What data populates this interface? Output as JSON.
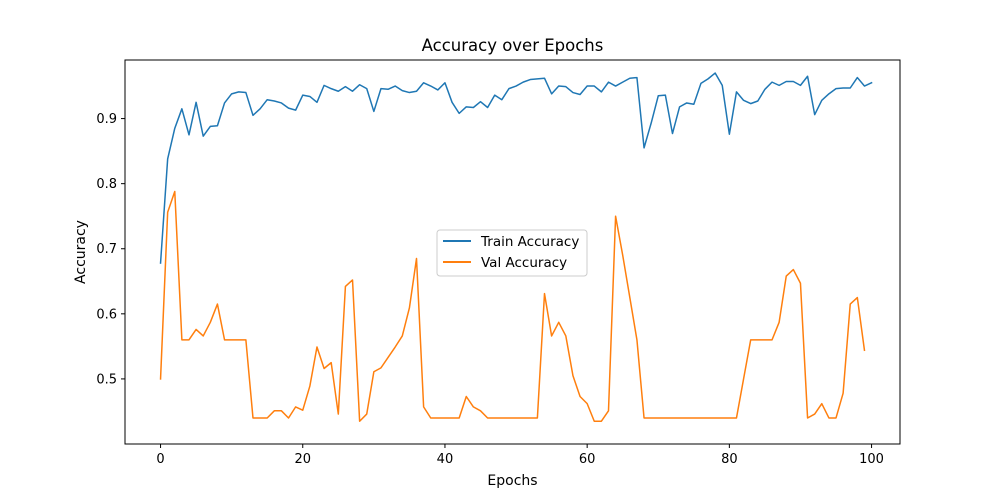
{
  "chart_data": {
    "type": "line",
    "title": "Accuracy over Epochs",
    "xlabel": "Epochs",
    "ylabel": "Accuracy",
    "xlim": [
      -5,
      104
    ],
    "ylim": [
      0.4,
      0.99
    ],
    "xticks": [
      0,
      20,
      40,
      60,
      80,
      100
    ],
    "yticks": [
      0.5,
      0.6,
      0.7,
      0.8,
      0.9
    ],
    "ytick_labels": [
      "0.5",
      "0.6",
      "0.7",
      "0.8",
      "0.9"
    ],
    "grid": false,
    "legend_position": "center",
    "series": [
      {
        "name": "Train Accuracy",
        "color": "#1f77b4",
        "values": [
          0.678,
          0.838,
          0.885,
          0.915,
          0.875,
          0.925,
          0.873,
          0.888,
          0.889,
          0.924,
          0.938,
          0.941,
          0.94,
          0.905,
          0.915,
          0.929,
          0.927,
          0.924,
          0.916,
          0.913,
          0.936,
          0.934,
          0.925,
          0.951,
          0.946,
          0.942,
          0.949,
          0.942,
          0.952,
          0.946,
          0.911,
          0.946,
          0.945,
          0.95,
          0.943,
          0.94,
          0.942,
          0.955,
          0.95,
          0.944,
          0.955,
          0.925,
          0.908,
          0.918,
          0.917,
          0.926,
          0.917,
          0.936,
          0.929,
          0.946,
          0.95,
          0.956,
          0.96,
          0.961,
          0.962,
          0.938,
          0.95,
          0.949,
          0.94,
          0.937,
          0.95,
          0.95,
          0.941,
          0.956,
          0.95,
          0.956,
          0.962,
          0.963,
          0.855,
          0.893,
          0.935,
          0.936,
          0.877,
          0.918,
          0.924,
          0.922,
          0.954,
          0.961,
          0.97,
          0.951,
          0.876,
          0.941,
          0.928,
          0.923,
          0.927,
          0.945,
          0.956,
          0.951,
          0.957,
          0.957,
          0.951,
          0.965,
          0.906,
          0.928,
          0.938,
          0.946,
          0.947,
          0.947,
          0.963,
          0.95,
          0.955
        ]
      },
      {
        "name": "Val Accuracy",
        "color": "#ff7f0e",
        "values": [
          0.5,
          0.756,
          0.788,
          0.56,
          0.56,
          0.576,
          0.566,
          0.587,
          0.615,
          0.56,
          0.56,
          0.56,
          0.56,
          0.44,
          0.44,
          0.44,
          0.451,
          0.451,
          0.44,
          0.457,
          0.452,
          0.489,
          0.549,
          0.516,
          0.525,
          0.446,
          0.642,
          0.652,
          0.435,
          0.446,
          0.511,
          0.517,
          0.533,
          0.549,
          0.566,
          0.609,
          0.685,
          0.457,
          0.44,
          0.44,
          0.44,
          0.44,
          0.44,
          0.473,
          0.457,
          0.451,
          0.44,
          0.44,
          0.44,
          0.44,
          0.44,
          0.44,
          0.44,
          0.44,
          0.631,
          0.566,
          0.587,
          0.566,
          0.505,
          0.473,
          0.462,
          0.435,
          0.435,
          0.451,
          0.75,
          0.69,
          0.625,
          0.56,
          0.44,
          0.44,
          0.44,
          0.44,
          0.44,
          0.44,
          0.44,
          0.44,
          0.44,
          0.44,
          0.44,
          0.44,
          0.44,
          0.44,
          0.5,
          0.56,
          0.56,
          0.56,
          0.56,
          0.587,
          0.658,
          0.668,
          0.647,
          0.44,
          0.446,
          0.462,
          0.44,
          0.44,
          0.478,
          0.615,
          0.625,
          0.544
        ]
      }
    ]
  }
}
